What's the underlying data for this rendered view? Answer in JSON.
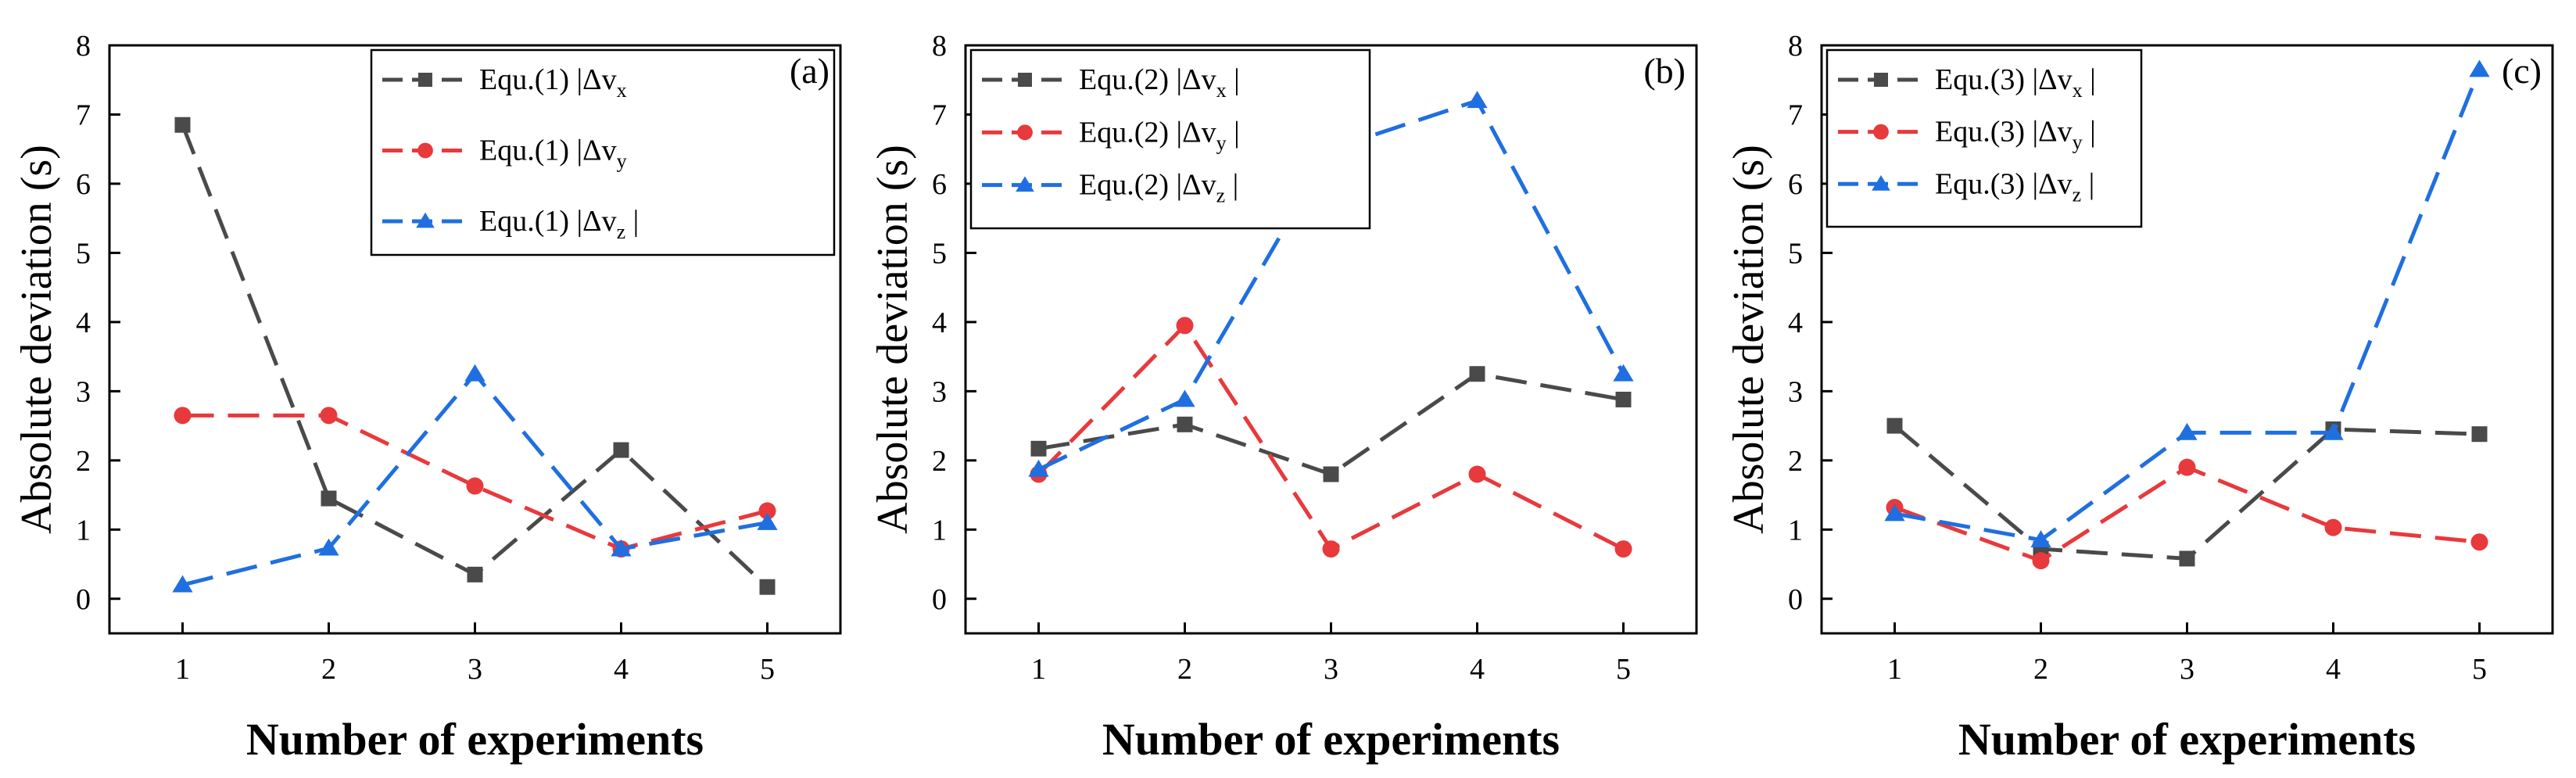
{
  "chart_data": [
    {
      "type": "line",
      "panel_label": "(a)",
      "xlabel": "Number of experiments",
      "ylabel": "Absolute deviation (s)",
      "x": [
        1,
        2,
        3,
        4,
        5
      ],
      "xlim": [
        0.5,
        5.5
      ],
      "ylim": [
        -0.5,
        8
      ],
      "xticks": [
        "1",
        "2",
        "3",
        "4",
        "5"
      ],
      "yticks": [
        "0",
        "1",
        "2",
        "3",
        "4",
        "5",
        "6",
        "7",
        "8"
      ],
      "legend_position": "top-right",
      "series": [
        {
          "label_main": "Equ.(1)",
          "label_sym": "|Δv",
          "label_sub": "x",
          "label_end": "",
          "color": "#4a4a4a",
          "marker": "square",
          "values": [
            6.85,
            1.45,
            0.35,
            2.15,
            0.17
          ]
        },
        {
          "label_main": "Equ.(1)",
          "label_sym": "|Δv",
          "label_sub": "y",
          "label_end": "",
          "color": "#e8393c",
          "marker": "circle",
          "values": [
            2.65,
            2.65,
            1.63,
            0.72,
            1.27
          ]
        },
        {
          "label_main": "Equ.(1)",
          "label_sym": "|Δv",
          "label_sub": "z",
          "label_end": "|",
          "color": "#1f6fe0",
          "marker": "triangle",
          "values": [
            0.2,
            0.73,
            3.25,
            0.72,
            1.1
          ]
        }
      ]
    },
    {
      "type": "line",
      "panel_label": "(b)",
      "xlabel": "Number of experiments",
      "ylabel": "Absolute deviation (s)",
      "x": [
        1,
        2,
        3,
        4,
        5
      ],
      "xlim": [
        0.5,
        5.5
      ],
      "ylim": [
        -0.5,
        8
      ],
      "xticks": [
        "1",
        "2",
        "3",
        "4",
        "5"
      ],
      "yticks": [
        "0",
        "1",
        "2",
        "3",
        "4",
        "5",
        "6",
        "7",
        "8"
      ],
      "legend_position": "top-left",
      "series": [
        {
          "label_main": "Equ.(2)",
          "label_sym": "|Δv",
          "label_sub": "x",
          "label_end": "|",
          "color": "#4a4a4a",
          "marker": "square",
          "values": [
            2.17,
            2.52,
            1.8,
            3.25,
            2.88
          ]
        },
        {
          "label_main": "Equ.(2)",
          "label_sym": "|Δv",
          "label_sub": "y",
          "label_end": "|",
          "color": "#e8393c",
          "marker": "circle",
          "values": [
            1.8,
            3.95,
            0.72,
            1.8,
            0.72
          ]
        },
        {
          "label_main": "Equ.(2)",
          "label_sym": "|Δv",
          "label_sub": "z",
          "label_end": "|",
          "color": "#1f6fe0",
          "marker": "triangle",
          "values": [
            1.87,
            2.88,
            6.5,
            7.2,
            3.25
          ]
        }
      ]
    },
    {
      "type": "line",
      "panel_label": "(c)",
      "xlabel": "Number of experiments",
      "ylabel": "Absolute deviation (s)",
      "x": [
        1,
        2,
        3,
        4,
        5
      ],
      "xlim": [
        0.5,
        5.5
      ],
      "ylim": [
        -0.5,
        8
      ],
      "xticks": [
        "1",
        "2",
        "3",
        "4",
        "5"
      ],
      "yticks": [
        "0",
        "1",
        "2",
        "3",
        "4",
        "5",
        "6",
        "7",
        "8"
      ],
      "legend_position": "top-left",
      "series": [
        {
          "label_main": "Equ.(3)",
          "label_sym": "|Δv",
          "label_sub": "x",
          "label_end": "|",
          "color": "#4a4a4a",
          "marker": "square",
          "values": [
            2.5,
            0.72,
            0.58,
            2.45,
            2.38
          ]
        },
        {
          "label_main": "Equ.(3)",
          "label_sym": "|Δv",
          "label_sub": "y",
          "label_end": "|",
          "color": "#e8393c",
          "marker": "circle",
          "values": [
            1.32,
            0.55,
            1.9,
            1.03,
            0.82
          ]
        },
        {
          "label_main": "Equ.(3)",
          "label_sym": "|Δv",
          "label_sub": "z",
          "label_end": "|",
          "color": "#1f6fe0",
          "marker": "triangle",
          "values": [
            1.23,
            0.85,
            2.4,
            2.4,
            7.65
          ]
        }
      ]
    }
  ]
}
